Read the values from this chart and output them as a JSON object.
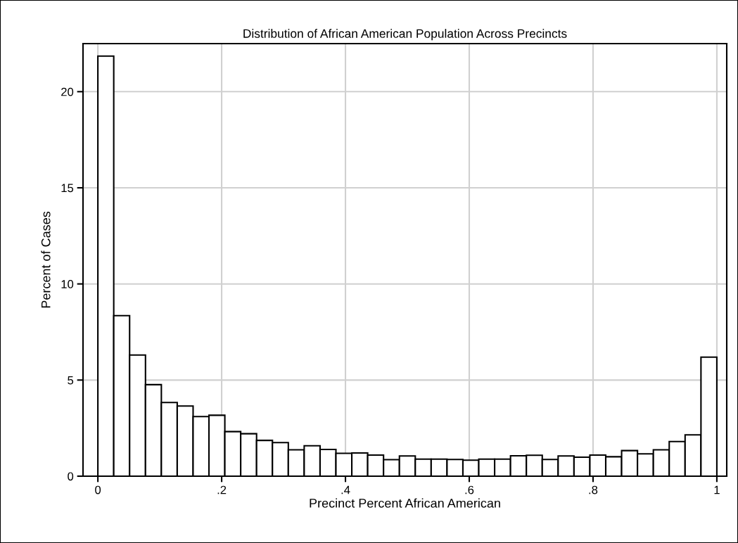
{
  "chart_data": {
    "type": "histogram",
    "title": "Distribution of African American Population Across Precincts",
    "xlabel": "Precinct Percent African American",
    "ylabel": "Percent of Cases",
    "bins": [
      0,
      0.025641,
      0.051282,
      0.076923,
      0.102564,
      0.128205,
      0.153846,
      0.179487,
      0.205128,
      0.230769,
      0.25641,
      0.282051,
      0.307692,
      0.333333,
      0.358974,
      0.384615,
      0.410256,
      0.435897,
      0.461538,
      0.487179,
      0.512821,
      0.538462,
      0.564103,
      0.589744,
      0.615385,
      0.641026,
      0.666667,
      0.692308,
      0.717949,
      0.74359,
      0.769231,
      0.794872,
      0.820513,
      0.846154,
      0.871795,
      0.897436,
      0.923077,
      0.948718,
      0.974359,
      1
    ],
    "values": [
      21.85,
      8.35,
      6.3,
      4.76,
      3.83,
      3.65,
      3.1,
      3.17,
      2.32,
      2.21,
      1.86,
      1.75,
      1.37,
      1.58,
      1.39,
      1.19,
      1.21,
      1.1,
      0.86,
      1.05,
      0.89,
      0.89,
      0.87,
      0.83,
      0.89,
      0.89,
      1.06,
      1.09,
      0.87,
      1.05,
      0.99,
      1.1,
      1.01,
      1.33,
      1.16,
      1.37,
      1.8,
      2.15,
      6.19
    ],
    "color": "#ffffff",
    "xlim": [
      -0.024,
      1.016
    ],
    "ylim": [
      0,
      22.5
    ],
    "xticks": [
      0,
      {
        "value": 0.2,
        "label": ".2"
      },
      {
        "value": 0.4,
        "label": ".4"
      },
      {
        "value": 0.6,
        "label": ".6"
      },
      {
        "value": 0.8,
        "label": ".8"
      },
      1
    ],
    "yticks": [
      0,
      5,
      10,
      15,
      20
    ],
    "grid": true
  }
}
